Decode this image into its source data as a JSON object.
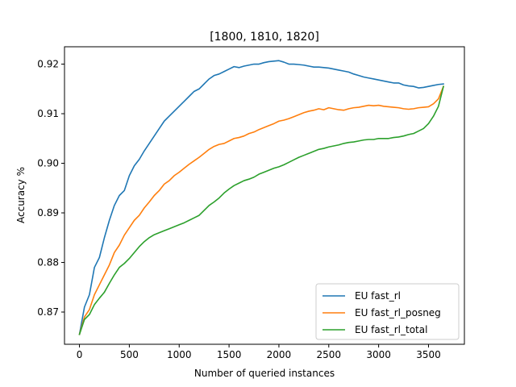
{
  "chart_data": {
    "type": "line",
    "title": "[1800, 1810, 1820]",
    "xlabel": "Number of queried instances",
    "ylabel": "Accuracy %",
    "xlim": [
      -150,
      3860
    ],
    "ylim": [
      0.8635,
      0.9235
    ],
    "xticks": [
      0,
      500,
      1000,
      1500,
      2000,
      2500,
      3000,
      3500
    ],
    "xtick_labels": [
      "0",
      "500",
      "1000",
      "1500",
      "2000",
      "2500",
      "3000",
      "3500"
    ],
    "yticks": [
      0.87,
      0.88,
      0.89,
      0.9,
      0.91,
      0.92
    ],
    "ytick_labels": [
      "0.87",
      "0.88",
      "0.89",
      "0.90",
      "0.91",
      "0.92"
    ],
    "grid": false,
    "legend_position": "lower-right",
    "series": [
      {
        "name": "EU fast_rl",
        "color": "#1f77b4",
        "x": [
          0,
          50,
          100,
          150,
          200,
          250,
          300,
          350,
          400,
          450,
          500,
          550,
          600,
          650,
          700,
          750,
          800,
          850,
          900,
          950,
          1000,
          1050,
          1100,
          1150,
          1200,
          1250,
          1300,
          1350,
          1400,
          1450,
          1500,
          1550,
          1600,
          1650,
          1700,
          1750,
          1800,
          1850,
          1900,
          1950,
          2000,
          2050,
          2100,
          2150,
          2200,
          2250,
          2300,
          2350,
          2400,
          2450,
          2500,
          2550,
          2600,
          2650,
          2700,
          2750,
          2800,
          2850,
          2900,
          2950,
          3000,
          3050,
          3100,
          3150,
          3200,
          3250,
          3300,
          3350,
          3400,
          3450,
          3500,
          3550,
          3600,
          3650
        ],
        "y": [
          0.8655,
          0.871,
          0.8735,
          0.879,
          0.881,
          0.885,
          0.8885,
          0.8915,
          0.8935,
          0.8945,
          0.8975,
          0.8995,
          0.9008,
          0.9025,
          0.904,
          0.9055,
          0.907,
          0.9085,
          0.9095,
          0.9105,
          0.9115,
          0.9125,
          0.9135,
          0.9145,
          0.915,
          0.916,
          0.917,
          0.9177,
          0.918,
          0.9185,
          0.919,
          0.9195,
          0.9193,
          0.9196,
          0.9198,
          0.92,
          0.92,
          0.9203,
          0.9205,
          0.9206,
          0.9207,
          0.9204,
          0.92,
          0.92,
          0.9199,
          0.9198,
          0.9196,
          0.9194,
          0.9194,
          0.9193,
          0.9192,
          0.919,
          0.9188,
          0.9186,
          0.9184,
          0.918,
          0.9177,
          0.9174,
          0.9172,
          0.917,
          0.9168,
          0.9166,
          0.9164,
          0.9162,
          0.9162,
          0.9158,
          0.9156,
          0.9155,
          0.9152,
          0.9153,
          0.9155,
          0.9157,
          0.9159,
          0.916
        ]
      },
      {
        "name": "EU fast_rl_posneg",
        "color": "#ff7f0e",
        "x": [
          0,
          50,
          100,
          150,
          200,
          250,
          300,
          350,
          400,
          450,
          500,
          550,
          600,
          650,
          700,
          750,
          800,
          850,
          900,
          950,
          1000,
          1050,
          1100,
          1150,
          1200,
          1250,
          1300,
          1350,
          1400,
          1450,
          1500,
          1550,
          1600,
          1650,
          1700,
          1750,
          1800,
          1850,
          1900,
          1950,
          2000,
          2050,
          2100,
          2150,
          2200,
          2250,
          2300,
          2350,
          2400,
          2450,
          2500,
          2550,
          2600,
          2650,
          2700,
          2750,
          2800,
          2850,
          2900,
          2950,
          3000,
          3050,
          3100,
          3150,
          3200,
          3250,
          3300,
          3350,
          3400,
          3450,
          3500,
          3550,
          3600,
          3650
        ],
        "y": [
          0.8655,
          0.869,
          0.8705,
          0.8735,
          0.8755,
          0.8775,
          0.8795,
          0.882,
          0.8835,
          0.8855,
          0.887,
          0.8885,
          0.8895,
          0.891,
          0.8922,
          0.8935,
          0.8945,
          0.8958,
          0.8965,
          0.8975,
          0.8982,
          0.899,
          0.8998,
          0.9005,
          0.9012,
          0.902,
          0.9028,
          0.9034,
          0.9038,
          0.904,
          0.9045,
          0.905,
          0.9052,
          0.9055,
          0.906,
          0.9063,
          0.9068,
          0.9072,
          0.9076,
          0.908,
          0.9085,
          0.9087,
          0.909,
          0.9094,
          0.9098,
          0.9102,
          0.9105,
          0.9107,
          0.911,
          0.9108,
          0.9112,
          0.911,
          0.9108,
          0.9107,
          0.911,
          0.9112,
          0.9113,
          0.9115,
          0.9117,
          0.9116,
          0.9117,
          0.9115,
          0.9114,
          0.9113,
          0.9112,
          0.911,
          0.9109,
          0.911,
          0.9112,
          0.9113,
          0.9114,
          0.912,
          0.913,
          0.9155
        ]
      },
      {
        "name": "EU fast_rl_total",
        "color": "#2ca02c",
        "x": [
          0,
          50,
          100,
          150,
          200,
          250,
          300,
          350,
          400,
          450,
          500,
          550,
          600,
          650,
          700,
          750,
          800,
          850,
          900,
          950,
          1000,
          1050,
          1100,
          1150,
          1200,
          1250,
          1300,
          1350,
          1400,
          1450,
          1500,
          1550,
          1600,
          1650,
          1700,
          1750,
          1800,
          1850,
          1900,
          1950,
          2000,
          2050,
          2100,
          2150,
          2200,
          2250,
          2300,
          2350,
          2400,
          2450,
          2500,
          2550,
          2600,
          2650,
          2700,
          2750,
          2800,
          2850,
          2900,
          2950,
          3000,
          3050,
          3100,
          3150,
          3200,
          3250,
          3300,
          3350,
          3400,
          3450,
          3500,
          3550,
          3600,
          3650
        ],
        "y": [
          0.8655,
          0.8685,
          0.8695,
          0.8715,
          0.8728,
          0.874,
          0.8758,
          0.8775,
          0.879,
          0.8798,
          0.8808,
          0.882,
          0.8832,
          0.8842,
          0.885,
          0.8856,
          0.886,
          0.8864,
          0.8868,
          0.8872,
          0.8876,
          0.888,
          0.8885,
          0.889,
          0.8895,
          0.8905,
          0.8915,
          0.8922,
          0.893,
          0.894,
          0.8948,
          0.8955,
          0.896,
          0.8965,
          0.8968,
          0.8972,
          0.8978,
          0.8982,
          0.8986,
          0.899,
          0.8993,
          0.8997,
          0.9002,
          0.9007,
          0.9012,
          0.9016,
          0.902,
          0.9024,
          0.9028,
          0.903,
          0.9033,
          0.9035,
          0.9037,
          0.904,
          0.9042,
          0.9043,
          0.9045,
          0.9047,
          0.9048,
          0.9048,
          0.905,
          0.905,
          0.905,
          0.9052,
          0.9053,
          0.9055,
          0.9058,
          0.906,
          0.9065,
          0.907,
          0.908,
          0.9095,
          0.9115,
          0.9155
        ]
      }
    ]
  }
}
